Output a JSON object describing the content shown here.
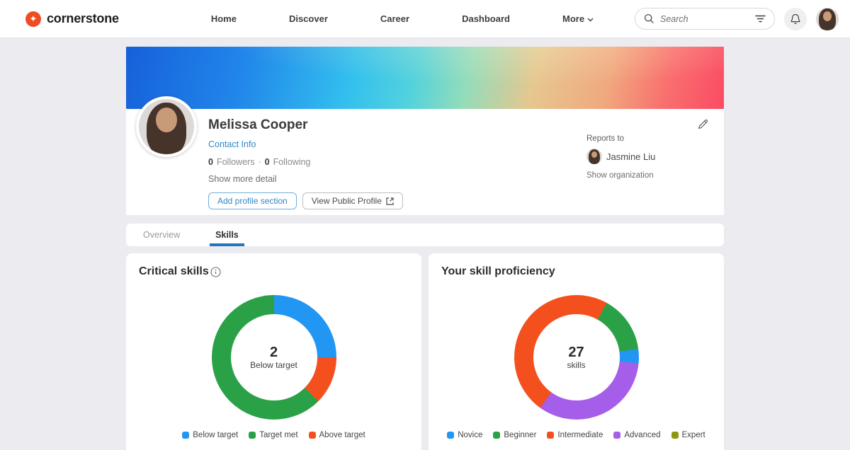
{
  "header": {
    "brand": "cornerstone",
    "logo_glyph": "✦",
    "nav": [
      {
        "label": "Home"
      },
      {
        "label": "Discover"
      },
      {
        "label": "Career"
      },
      {
        "label": "Dashboard"
      },
      {
        "label": "More"
      }
    ],
    "search_placeholder": "Search"
  },
  "profile": {
    "name": "Melissa Cooper",
    "contact_link": "Contact Info",
    "followers_count": "0",
    "followers_label": "Followers",
    "separator": "·",
    "following_count": "0",
    "following_label": "Following",
    "show_more": "Show more detail",
    "add_section_button": "Add profile section",
    "view_public_button": "View Public Profile",
    "reports_to_label": "Reports to",
    "manager_name": "Jasmine Liu",
    "show_org": "Show organization"
  },
  "tabs": [
    {
      "label": "Overview",
      "active": false
    },
    {
      "label": "Skills",
      "active": true
    }
  ],
  "chart_data": [
    {
      "type": "pie",
      "title": "Critical skills",
      "center_value": "2",
      "center_label": "Below target",
      "total": 8,
      "start_angle_deg": 0,
      "segments": [
        {
          "label": "Below target",
          "value": 2,
          "color": "#2196f3"
        },
        {
          "label": "Above target",
          "value": 1,
          "color": "#f4501e"
        },
        {
          "label": "Target met",
          "value": 5,
          "color": "#2aa147"
        }
      ],
      "legend": [
        {
          "label": "Below target",
          "color": "#2196f3"
        },
        {
          "label": "Target met",
          "color": "#2aa147"
        },
        {
          "label": "Above target",
          "color": "#f4501e"
        }
      ],
      "legend_position": "bottom"
    },
    {
      "type": "pie",
      "title": "Your skill proficiency",
      "center_value": "27",
      "center_label": "skills",
      "total": 27,
      "start_angle_deg": 29,
      "segments": [
        {
          "label": "Beginner",
          "value": 4,
          "color": "#2aa147"
        },
        {
          "label": "Novice",
          "value": 1,
          "color": "#2196f3"
        },
        {
          "label": "Advanced",
          "value": 9,
          "color": "#a55eea"
        },
        {
          "label": "Intermediate",
          "value": 13,
          "color": "#f4501e"
        }
      ],
      "legend": [
        {
          "label": "Novice",
          "color": "#2196f3"
        },
        {
          "label": "Beginner",
          "color": "#2aa147"
        },
        {
          "label": "Intermediate",
          "color": "#f4501e"
        },
        {
          "label": "Advanced",
          "color": "#a55eea"
        },
        {
          "label": "Expert",
          "color": "#8a9a0b"
        }
      ],
      "legend_position": "bottom"
    }
  ],
  "colors": {
    "brand_red": "#f04c23",
    "link_blue": "#2e87c8",
    "tab_underline": "#1f76bb",
    "page_background": "#ebebf0",
    "banner_left": "#1660da",
    "banner_mid": "#33c0ee",
    "banner_tan": "#e6c78f",
    "banner_right": "#fb4b64"
  }
}
